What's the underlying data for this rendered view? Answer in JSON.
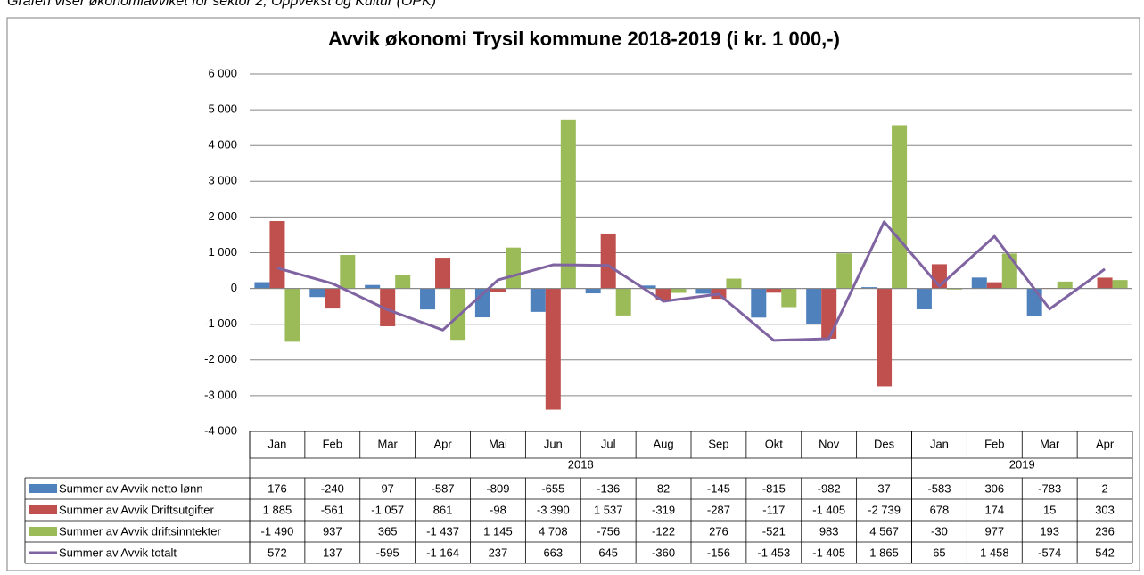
{
  "caption": "Grafen viser økonomiavviket for sektor 2, Oppvekst og Kultur (OPK)",
  "chart_data": {
    "type": "bar",
    "title": "Avvik økonomi Trysil kommune 2018-2019 (i kr. 1 000,-)",
    "category_groups": [
      {
        "label": "2018",
        "categories": [
          "Jan",
          "Feb",
          "Mar",
          "Apr",
          "Mai",
          "Jun",
          "Jul",
          "Aug",
          "Sep",
          "Okt",
          "Nov",
          "Des"
        ]
      },
      {
        "label": "2019",
        "categories": [
          "Jan",
          "Feb",
          "Mar",
          "Apr"
        ]
      }
    ],
    "series": [
      {
        "name": "Summer av Avvik netto lønn",
        "type": "bar",
        "color": "#4f81bd",
        "values": [
          176,
          -240,
          97,
          -587,
          -809,
          -655,
          -136,
          82,
          -145,
          -815,
          -982,
          37,
          -583,
          306,
          -783,
          2
        ],
        "value_labels": [
          "176",
          "-240",
          "97",
          "-587",
          "-809",
          "-655",
          "-136",
          "82",
          "-145",
          "-815",
          "-982",
          "37",
          "-583",
          "306",
          "-783",
          "2"
        ]
      },
      {
        "name": "Summer av Avvik Driftsutgifter",
        "type": "bar",
        "color": "#c0504d",
        "values": [
          1885,
          -561,
          -1057,
          861,
          -98,
          -3390,
          1537,
          -319,
          -287,
          -117,
          -1405,
          -2739,
          678,
          174,
          15,
          303
        ],
        "value_labels": [
          "1 885",
          "-561",
          "-1 057",
          "861",
          "-98",
          "-3 390",
          "1 537",
          "-319",
          "-287",
          "-117",
          "-1 405",
          "-2 739",
          "678",
          "174",
          "15",
          "303"
        ]
      },
      {
        "name": "Summer av Avvik driftsinntekter",
        "type": "bar",
        "color": "#9bbb59",
        "values": [
          -1490,
          937,
          365,
          -1437,
          1145,
          4708,
          -756,
          -122,
          276,
          -521,
          983,
          4567,
          -30,
          977,
          193,
          236
        ],
        "value_labels": [
          "-1 490",
          "937",
          "365",
          "-1 437",
          "1 145",
          "4 708",
          "-756",
          "-122",
          "276",
          "-521",
          "983",
          "4 567",
          "-30",
          "977",
          "193",
          "236"
        ]
      },
      {
        "name": "Summer av Avvik totalt",
        "type": "line",
        "color": "#8064a2",
        "values": [
          572,
          137,
          -595,
          -1164,
          237,
          663,
          645,
          -360,
          -156,
          -1453,
          -1405,
          1865,
          65,
          1458,
          -574,
          542
        ],
        "value_labels": [
          "572",
          "137",
          "-595",
          "-1 164",
          "237",
          "663",
          "645",
          "-360",
          "-156",
          "-1 453",
          "-1 405",
          "1 865",
          "65",
          "1 458",
          "-574",
          "542"
        ]
      }
    ],
    "ylim": [
      -4000,
      6000
    ],
    "yticks": [
      {
        "value": -4000,
        "label": "-4 000"
      },
      {
        "value": -3000,
        "label": "-3 000"
      },
      {
        "value": -2000,
        "label": "-2 000"
      },
      {
        "value": -1000,
        "label": "-1 000"
      },
      0,
      {
        "value": 1000,
        "label": "1 000"
      },
      {
        "value": 2000,
        "label": "2 000"
      },
      {
        "value": 3000,
        "label": "3 000"
      },
      {
        "value": 4000,
        "label": "4 000"
      },
      {
        "value": 5000,
        "label": "5 000"
      },
      {
        "value": 6000,
        "label": "6 000"
      }
    ],
    "grid": true
  }
}
